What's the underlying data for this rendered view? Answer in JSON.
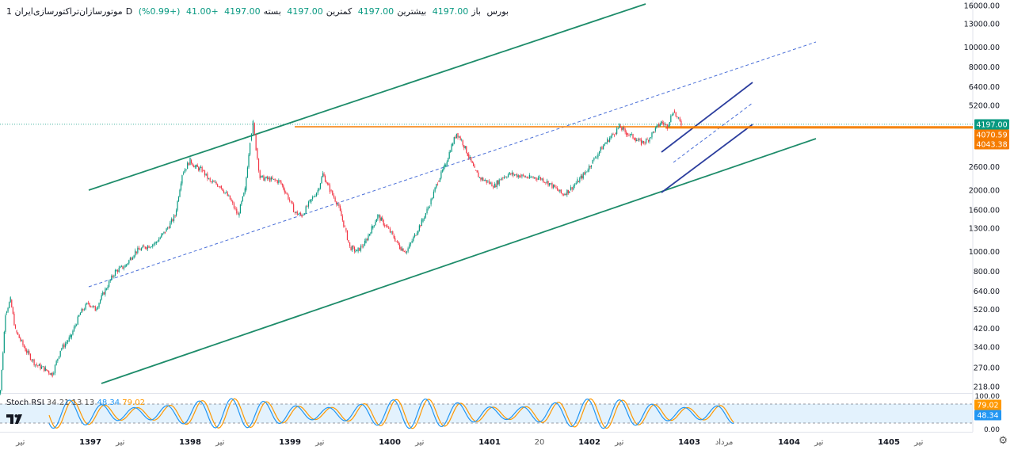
{
  "header": {
    "symbol": "موتورسازان‌تراکتورسازی‌ایران",
    "interval": "1D",
    "exchange": "بورس",
    "open_label": "باز",
    "open": "4197.00",
    "high_label": "بیشترین",
    "high": "4197.00",
    "low_label": "کمترین",
    "low": "4197.00",
    "close_label": "بسته",
    "close": "4197.00",
    "change": "+41.00",
    "change_pct": "(+0.99%)"
  },
  "rsi_legend": {
    "name": "Stoch RSI",
    "params": "34 21 13 13",
    "k": "48.34",
    "d": "79.02"
  },
  "colors": {
    "up": "#089981",
    "down": "#f23645",
    "channel": "#1e8c6a",
    "dashed": "#4a6fd8",
    "small_channel": "#2c3e9e",
    "resistance": "#f57c00",
    "rsi_k": "#2196f3",
    "rsi_d": "#ff9800",
    "rsi_fill": "#e3f2fd"
  },
  "chart_data": {
    "type": "candlestick",
    "scale": "log",
    "price_ticks": [
      "16000.00",
      "13000.00",
      "10000.00",
      "8000.00",
      "6400.00",
      "5200.00",
      "2600.00",
      "2000.00",
      "1600.00",
      "1300.00",
      "1000.00",
      "800.00",
      "640.00",
      "520.00",
      "420.00",
      "340.00",
      "270.00",
      "218.00"
    ],
    "price_tick_values": [
      16000,
      13000,
      10000,
      8000,
      6400,
      5200,
      2600,
      2000,
      1600,
      1300,
      1000,
      800,
      640,
      520,
      420,
      340,
      270,
      218
    ],
    "price_labels": [
      {
        "text": "4197.00",
        "value": 4197,
        "color": "#089981"
      },
      {
        "text": "4070.59",
        "value": 4070.59,
        "color": "#f57c00"
      },
      {
        "text": "4043.38",
        "value": 4043.38,
        "color": "#f57c00"
      }
    ],
    "time_labels": [
      {
        "text": "تیر",
        "year": 1396.3
      },
      {
        "text": "1397",
        "year": 1397.0
      },
      {
        "text": "تیر",
        "year": 1397.3
      },
      {
        "text": "1398",
        "year": 1398.0
      },
      {
        "text": "تیر",
        "year": 1398.3
      },
      {
        "text": "1399",
        "year": 1399.0
      },
      {
        "text": "تیر",
        "year": 1399.3
      },
      {
        "text": "1400",
        "year": 1400.0
      },
      {
        "text": "تیر",
        "year": 1400.3
      },
      {
        "text": "1401",
        "year": 1401.0
      },
      {
        "text": "20",
        "year": 1401.5
      },
      {
        "text": "1402",
        "year": 1402.0
      },
      {
        "text": "تیر",
        "year": 1402.3
      },
      {
        "text": "1403",
        "year": 1403.0
      },
      {
        "text": "مرداد",
        "year": 1403.35
      },
      {
        "text": "1404",
        "year": 1404.0
      },
      {
        "text": "تیر",
        "year": 1404.3
      },
      {
        "text": "1405",
        "year": 1405.0
      },
      {
        "text": "تیر",
        "year": 1405.3
      }
    ],
    "price_path": [
      [
        1396.05,
        200
      ],
      [
        1396.1,
        210
      ],
      [
        1396.15,
        500
      ],
      [
        1396.2,
        580
      ],
      [
        1396.25,
        410
      ],
      [
        1396.35,
        330
      ],
      [
        1396.45,
        280
      ],
      [
        1396.55,
        265
      ],
      [
        1396.62,
        250
      ],
      [
        1396.7,
        330
      ],
      [
        1396.8,
        380
      ],
      [
        1396.9,
        500
      ],
      [
        1396.98,
        560
      ],
      [
        1397.05,
        520
      ],
      [
        1397.15,
        650
      ],
      [
        1397.25,
        800
      ],
      [
        1397.35,
        850
      ],
      [
        1397.45,
        1000
      ],
      [
        1397.55,
        1050
      ],
      [
        1397.65,
        1100
      ],
      [
        1397.75,
        1250
      ],
      [
        1397.85,
        1500
      ],
      [
        1397.92,
        2400
      ],
      [
        1398.0,
        2800
      ],
      [
        1398.05,
        2600
      ],
      [
        1398.12,
        2500
      ],
      [
        1398.2,
        2200
      ],
      [
        1398.3,
        2100
      ],
      [
        1398.4,
        1800
      ],
      [
        1398.48,
        1500
      ],
      [
        1398.55,
        2000
      ],
      [
        1398.6,
        3500
      ],
      [
        1398.63,
        4250
      ],
      [
        1398.66,
        3200
      ],
      [
        1398.7,
        2300
      ],
      [
        1398.8,
        2250
      ],
      [
        1398.9,
        2200
      ],
      [
        1398.97,
        1900
      ],
      [
        1399.05,
        1550
      ],
      [
        1399.12,
        1500
      ],
      [
        1399.2,
        1750
      ],
      [
        1399.28,
        2000
      ],
      [
        1399.33,
        2400
      ],
      [
        1399.4,
        2000
      ],
      [
        1399.48,
        1700
      ],
      [
        1399.55,
        1300
      ],
      [
        1399.6,
        1050
      ],
      [
        1399.67,
        1000
      ],
      [
        1399.75,
        1100
      ],
      [
        1399.82,
        1300
      ],
      [
        1399.88,
        1500
      ],
      [
        1399.95,
        1350
      ],
      [
        1400.03,
        1200
      ],
      [
        1400.1,
        1050
      ],
      [
        1400.17,
        1000
      ],
      [
        1400.25,
        1200
      ],
      [
        1400.32,
        1400
      ],
      [
        1400.4,
        1700
      ],
      [
        1400.48,
        2200
      ],
      [
        1400.55,
        2600
      ],
      [
        1400.62,
        3300
      ],
      [
        1400.67,
        3800
      ],
      [
        1400.72,
        3500
      ],
      [
        1400.78,
        3000
      ],
      [
        1400.85,
        2500
      ],
      [
        1400.9,
        2300
      ],
      [
        1400.97,
        2200
      ],
      [
        1401.05,
        2100
      ],
      [
        1401.12,
        2300
      ],
      [
        1401.2,
        2400
      ],
      [
        1401.3,
        2350
      ],
      [
        1401.4,
        2300
      ],
      [
        1401.5,
        2300
      ],
      [
        1401.6,
        2150
      ],
      [
        1401.68,
        2000
      ],
      [
        1401.73,
        1900
      ],
      [
        1401.8,
        2000
      ],
      [
        1401.88,
        2200
      ],
      [
        1401.95,
        2400
      ],
      [
        1402.02,
        2700
      ],
      [
        1402.1,
        3100
      ],
      [
        1402.18,
        3500
      ],
      [
        1402.25,
        3800
      ],
      [
        1402.3,
        4100
      ],
      [
        1402.37,
        3800
      ],
      [
        1402.45,
        3600
      ],
      [
        1402.52,
        3400
      ],
      [
        1402.58,
        3500
      ],
      [
        1402.65,
        3900
      ],
      [
        1402.72,
        4300
      ],
      [
        1402.78,
        4100
      ],
      [
        1402.84,
        4900
      ],
      [
        1402.88,
        4500
      ],
      [
        1402.92,
        4197
      ]
    ]
  },
  "rsi_axis": {
    "ticks": [
      "100.00",
      "0.00"
    ],
    "k_label": "48.34",
    "d_label": "79.02",
    "upper_band": 80,
    "lower_band": 20,
    "k": 48.34,
    "d": 79.02
  }
}
